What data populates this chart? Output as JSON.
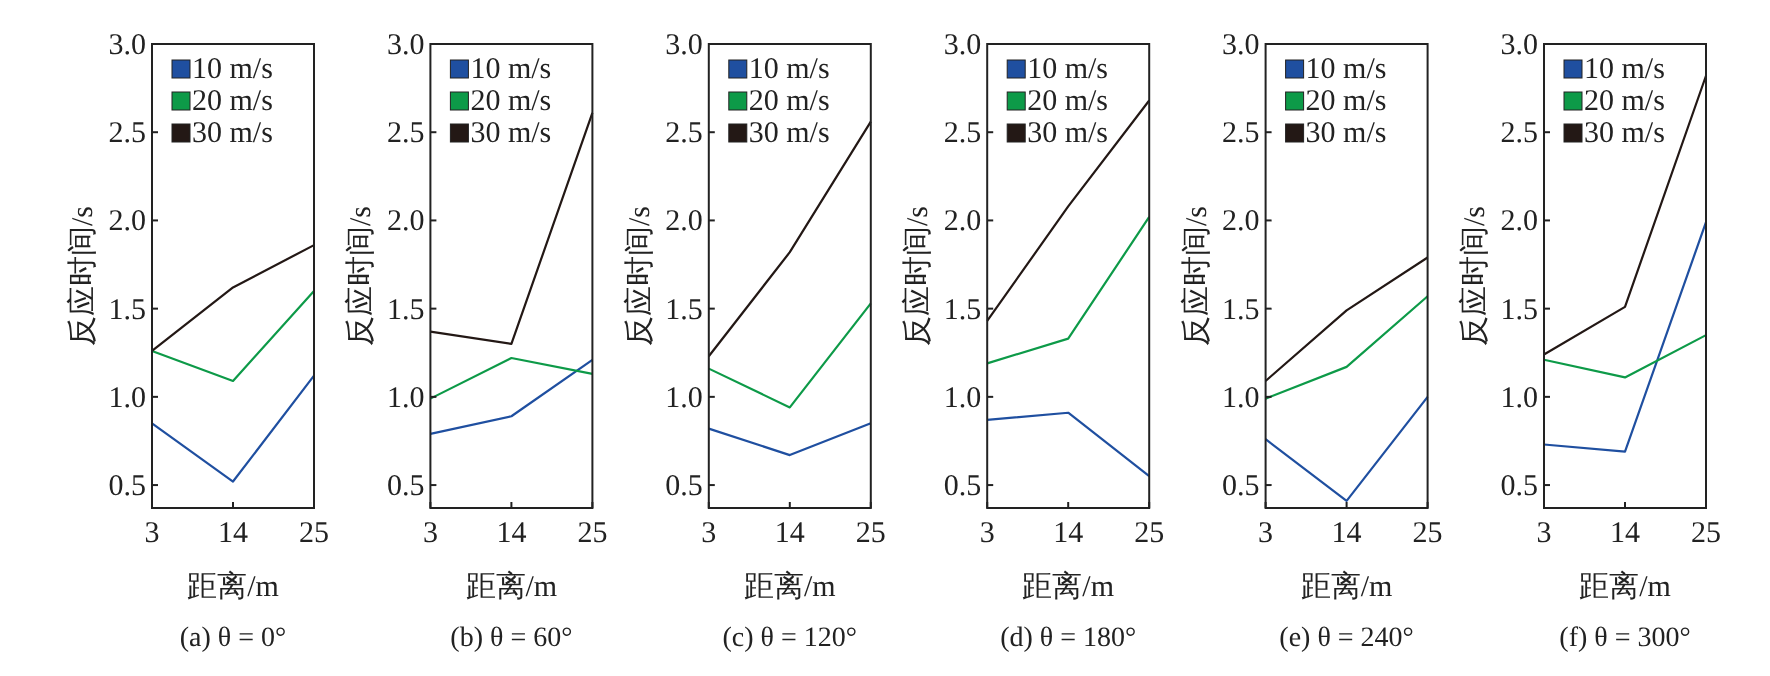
{
  "chart_data": [
    {
      "type": "line",
      "title": "(a) θ = 0°",
      "xlabel": "距离/m",
      "ylabel": "反应时间/s",
      "x": [
        3,
        14,
        25
      ],
      "xlim": [
        3,
        25
      ],
      "xticks": [
        3,
        14,
        25
      ],
      "ylim": [
        0.37,
        3.0
      ],
      "yticks": [
        {
          "value": 0.5,
          "label": "0.5"
        },
        {
          "value": 1,
          "label": "1.0"
        },
        {
          "value": 1.5,
          "label": "1.5"
        },
        {
          "value": 2,
          "label": "2.0"
        },
        {
          "value": 2.5,
          "label": "2.5"
        },
        {
          "value": 3,
          "label": "3.0"
        }
      ],
      "legend": "top left",
      "grid": false,
      "series": [
        {
          "name": "10 m/s",
          "color": "#1f4fa0",
          "values": [
            0.85,
            0.52,
            1.12
          ]
        },
        {
          "name": "20 m/s",
          "color": "#0d9a48",
          "values": [
            1.26,
            1.09,
            1.6
          ]
        },
        {
          "name": "30 m/s",
          "color": "#231815",
          "values": [
            1.26,
            1.62,
            1.86
          ]
        }
      ]
    },
    {
      "type": "line",
      "title": "(b) θ = 60°",
      "xlabel": "距离/m",
      "ylabel": "反应时间/s",
      "x": [
        3,
        14,
        25
      ],
      "xlim": [
        3,
        25
      ],
      "xticks": [
        3,
        14,
        25
      ],
      "ylim": [
        0.37,
        3.0
      ],
      "yticks": [
        {
          "value": 0.5,
          "label": "0.5"
        },
        {
          "value": 1,
          "label": "1.0"
        },
        {
          "value": 1.5,
          "label": "1.5"
        },
        {
          "value": 2,
          "label": "2.0"
        },
        {
          "value": 2.5,
          "label": "2.5"
        },
        {
          "value": 3,
          "label": "3.0"
        }
      ],
      "legend": "top left",
      "grid": false,
      "series": [
        {
          "name": "10 m/s",
          "color": "#1f4fa0",
          "values": [
            0.79,
            0.89,
            1.21
          ]
        },
        {
          "name": "20 m/s",
          "color": "#0d9a48",
          "values": [
            0.99,
            1.22,
            1.13
          ]
        },
        {
          "name": "30 m/s",
          "color": "#231815",
          "values": [
            1.37,
            1.3,
            2.61
          ]
        }
      ]
    },
    {
      "type": "line",
      "title": "(c) θ = 120°",
      "xlabel": "距离/m",
      "ylabel": "反应时间/s",
      "x": [
        3,
        14,
        25
      ],
      "xlim": [
        3,
        25
      ],
      "xticks": [
        3,
        14,
        25
      ],
      "ylim": [
        0.37,
        3.0
      ],
      "yticks": [
        {
          "value": 0.5,
          "label": "0.5"
        },
        {
          "value": 1,
          "label": "1.0"
        },
        {
          "value": 1.5,
          "label": "1.5"
        },
        {
          "value": 2,
          "label": "2.0"
        },
        {
          "value": 2.5,
          "label": "2.5"
        },
        {
          "value": 3,
          "label": "3.0"
        }
      ],
      "legend": "top left",
      "grid": false,
      "series": [
        {
          "name": "10 m/s",
          "color": "#1f4fa0",
          "values": [
            0.82,
            0.67,
            0.85
          ]
        },
        {
          "name": "20 m/s",
          "color": "#0d9a48",
          "values": [
            1.16,
            0.94,
            1.53
          ]
        },
        {
          "name": "30 m/s",
          "color": "#231815",
          "values": [
            1.23,
            1.82,
            2.56
          ]
        }
      ]
    },
    {
      "type": "line",
      "title": "(d) θ = 180°",
      "xlabel": "距离/m",
      "ylabel": "反应时间/s",
      "x": [
        3,
        14,
        25
      ],
      "xlim": [
        3,
        25
      ],
      "xticks": [
        3,
        14,
        25
      ],
      "ylim": [
        0.37,
        3.0
      ],
      "yticks": [
        {
          "value": 0.5,
          "label": "0.5"
        },
        {
          "value": 1,
          "label": "1.0"
        },
        {
          "value": 1.5,
          "label": "1.5"
        },
        {
          "value": 2,
          "label": "2.0"
        },
        {
          "value": 2.5,
          "label": "2.5"
        },
        {
          "value": 3,
          "label": "3.0"
        }
      ],
      "legend": "top left",
      "grid": false,
      "series": [
        {
          "name": "10 m/s",
          "color": "#1f4fa0",
          "values": [
            0.87,
            0.91,
            0.55
          ]
        },
        {
          "name": "20 m/s",
          "color": "#0d9a48",
          "values": [
            1.19,
            1.33,
            2.02
          ]
        },
        {
          "name": "30 m/s",
          "color": "#231815",
          "values": [
            1.43,
            2.08,
            2.68
          ]
        }
      ]
    },
    {
      "type": "line",
      "title": "(e) θ = 240°",
      "xlabel": "距离/m",
      "ylabel": "反应时间/s",
      "x": [
        3,
        14,
        25
      ],
      "xlim": [
        3,
        25
      ],
      "xticks": [
        3,
        14,
        25
      ],
      "ylim": [
        0.37,
        3.0
      ],
      "yticks": [
        {
          "value": 0.5,
          "label": "0.5"
        },
        {
          "value": 1,
          "label": "1.0"
        },
        {
          "value": 1.5,
          "label": "1.5"
        },
        {
          "value": 2,
          "label": "2.0"
        },
        {
          "value": 2.5,
          "label": "2.5"
        },
        {
          "value": 3,
          "label": "3.0"
        }
      ],
      "legend": "top left",
      "grid": false,
      "series": [
        {
          "name": "10 m/s",
          "color": "#1f4fa0",
          "values": [
            0.76,
            0.41,
            1.0
          ]
        },
        {
          "name": "20 m/s",
          "color": "#0d9a48",
          "values": [
            0.99,
            1.17,
            1.57
          ]
        },
        {
          "name": "30 m/s",
          "color": "#231815",
          "values": [
            1.09,
            1.49,
            1.79
          ]
        }
      ]
    },
    {
      "type": "line",
      "title": "(f) θ = 300°",
      "xlabel": "距离/m",
      "ylabel": "反应时间/s",
      "x": [
        3,
        14,
        25
      ],
      "xlim": [
        3,
        25
      ],
      "xticks": [
        3,
        14,
        25
      ],
      "ylim": [
        0.37,
        3.0
      ],
      "yticks": [
        {
          "value": 0.5,
          "label": "0.5"
        },
        {
          "value": 1,
          "label": "1.0"
        },
        {
          "value": 1.5,
          "label": "1.5"
        },
        {
          "value": 2,
          "label": "2.0"
        },
        {
          "value": 2.5,
          "label": "2.5"
        },
        {
          "value": 3,
          "label": "3.0"
        }
      ],
      "legend": "top left",
      "grid": false,
      "series": [
        {
          "name": "10 m/s",
          "color": "#1f4fa0",
          "values": [
            0.73,
            0.69,
            1.99
          ]
        },
        {
          "name": "20 m/s",
          "color": "#0d9a48",
          "values": [
            1.21,
            1.11,
            1.35
          ]
        },
        {
          "name": "30 m/s",
          "color": "#231815",
          "values": [
            1.24,
            1.51,
            2.82
          ]
        }
      ]
    }
  ]
}
